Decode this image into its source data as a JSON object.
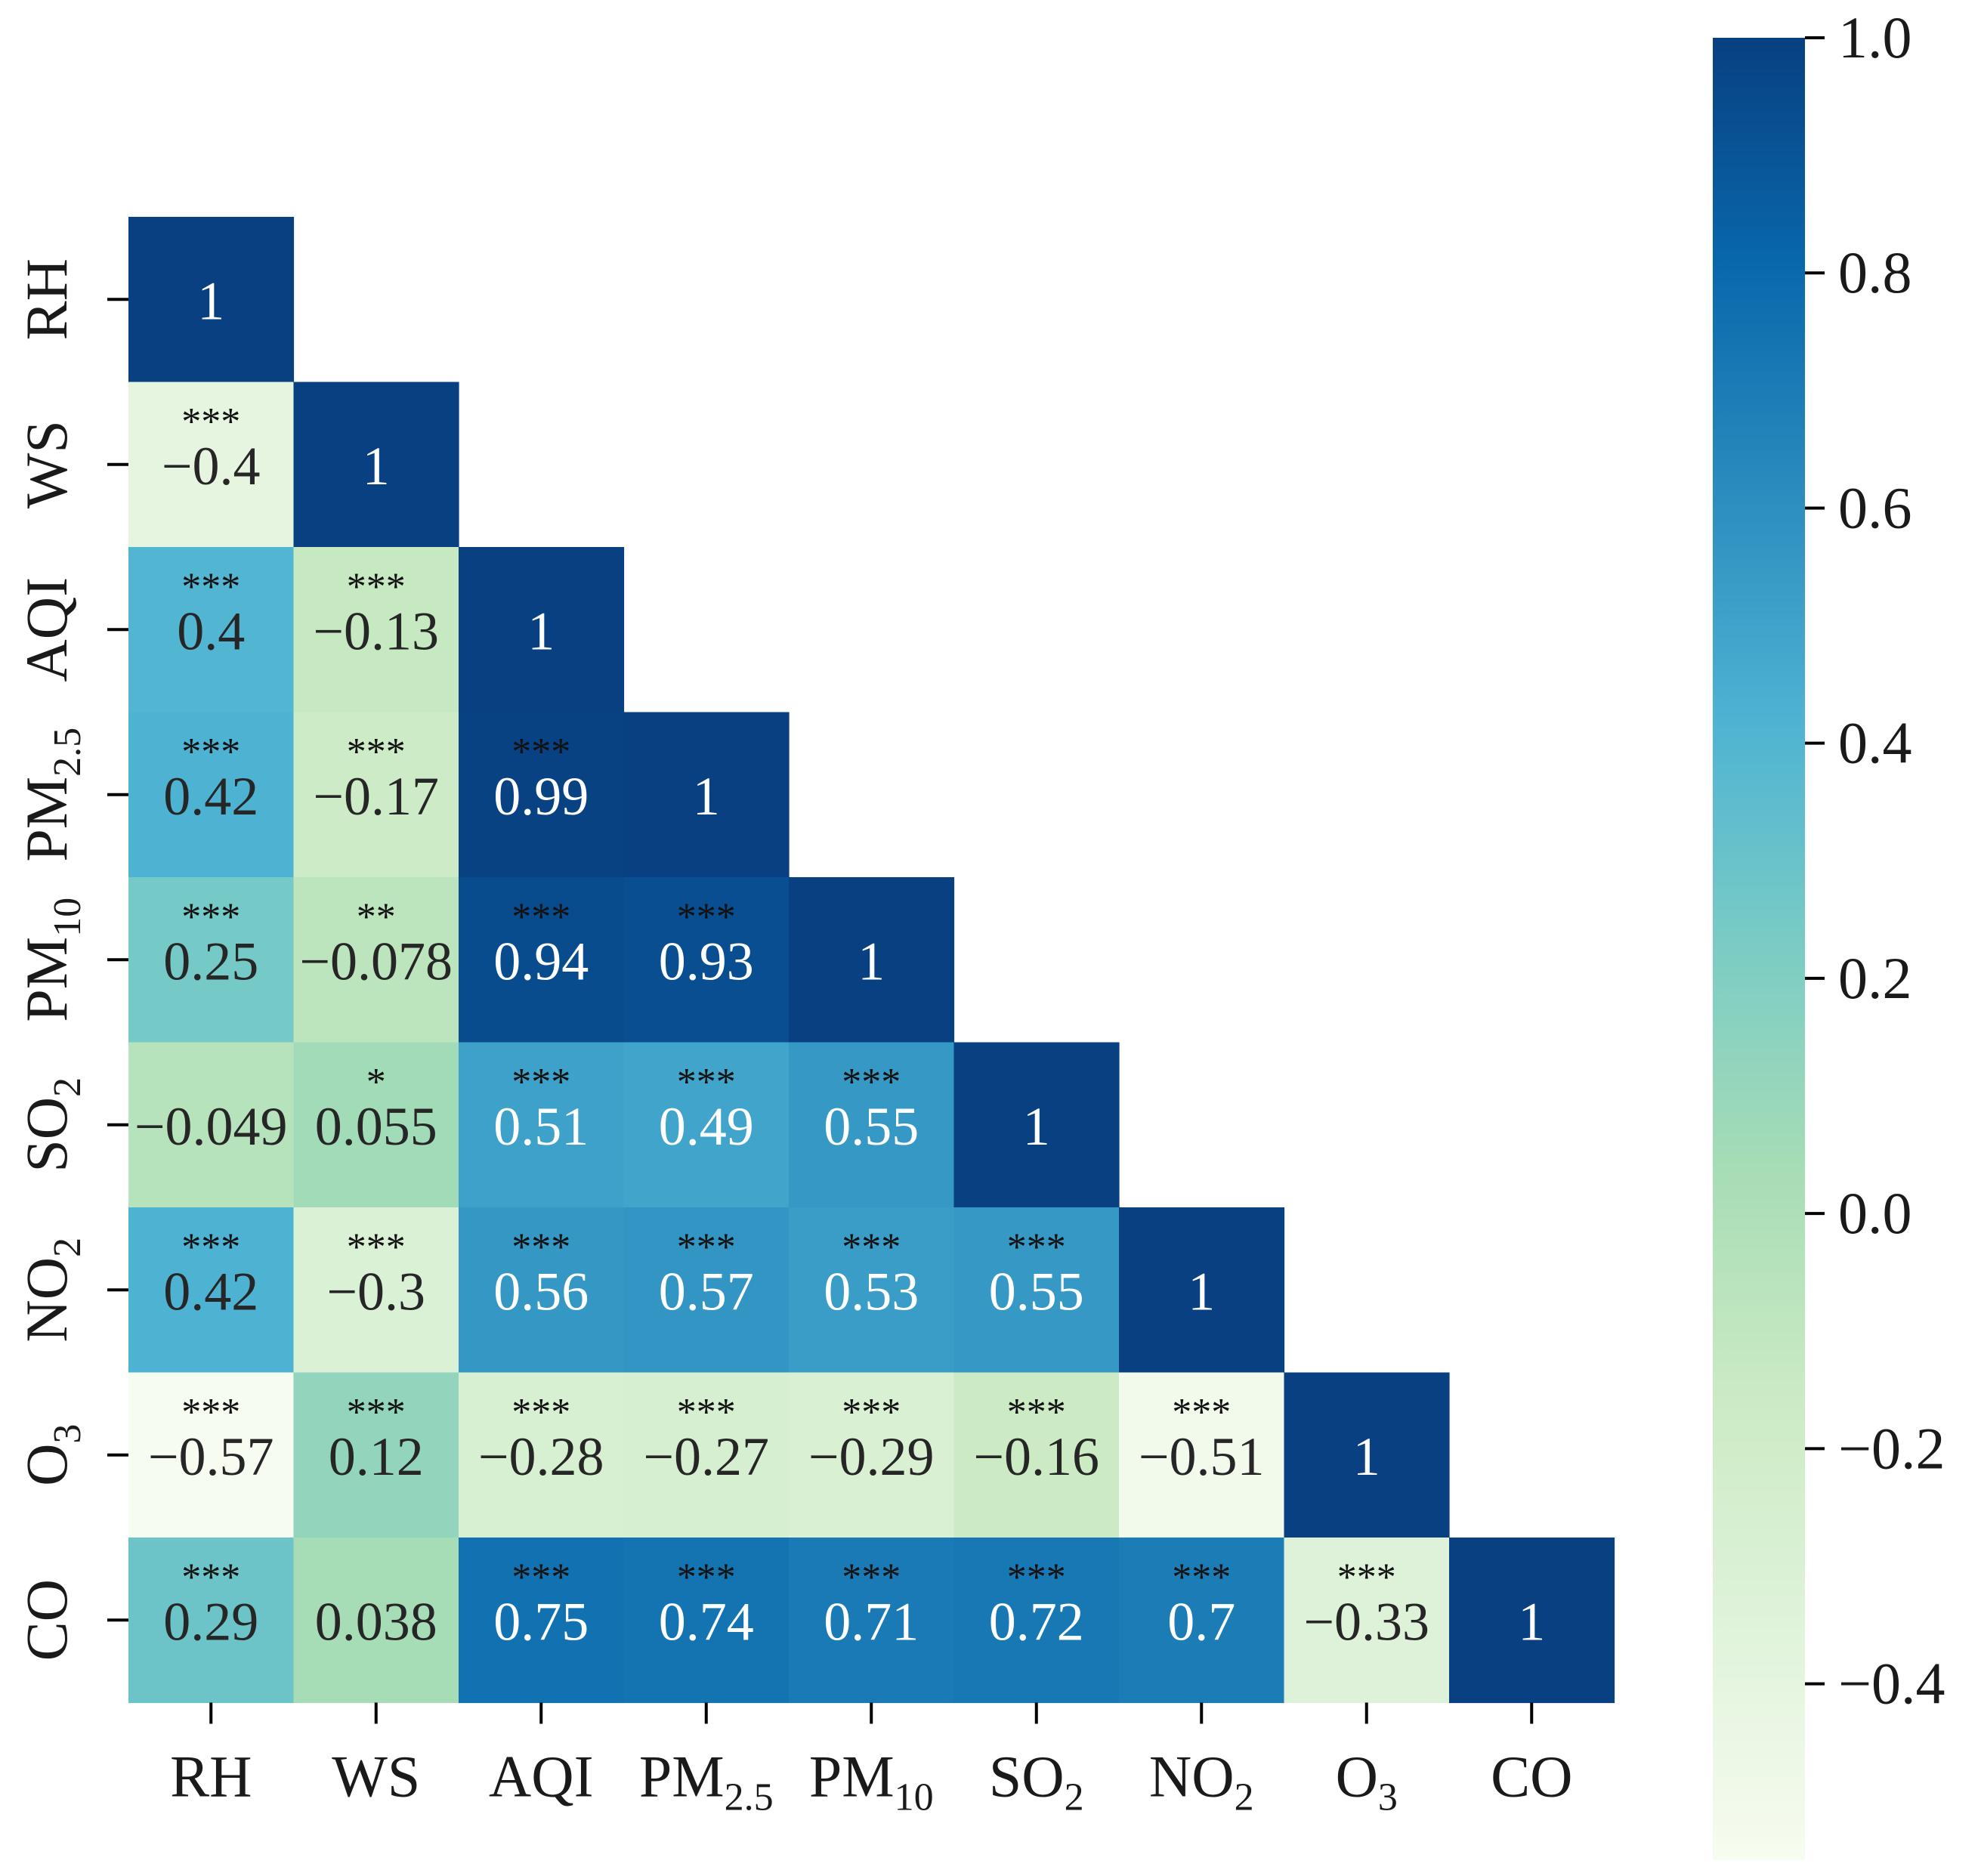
{
  "chart_data": {
    "type": "heatmap",
    "title": "",
    "xlabel": "",
    "ylabel": "",
    "variables": [
      {
        "base": "RH",
        "sub": ""
      },
      {
        "base": "WS",
        "sub": ""
      },
      {
        "base": "AQI",
        "sub": ""
      },
      {
        "base": "PM",
        "sub": "2.5"
      },
      {
        "base": "PM",
        "sub": "10"
      },
      {
        "base": "SO",
        "sub": "2"
      },
      {
        "base": "NO",
        "sub": "2"
      },
      {
        "base": "O",
        "sub": "3"
      },
      {
        "base": "CO",
        "sub": ""
      }
    ],
    "values": [
      [
        1
      ],
      [
        -0.4,
        1
      ],
      [
        0.4,
        -0.13,
        1
      ],
      [
        0.42,
        -0.17,
        0.99,
        1
      ],
      [
        0.25,
        -0.078,
        0.94,
        0.93,
        1
      ],
      [
        -0.049,
        0.055,
        0.51,
        0.49,
        0.55,
        1
      ],
      [
        0.42,
        -0.3,
        0.56,
        0.57,
        0.53,
        0.55,
        1
      ],
      [
        -0.57,
        0.12,
        -0.28,
        -0.27,
        -0.29,
        -0.16,
        -0.51,
        1
      ],
      [
        0.29,
        0.038,
        0.75,
        0.74,
        0.71,
        0.72,
        0.7,
        -0.33,
        1
      ]
    ],
    "labels": [
      [
        "1"
      ],
      [
        "−0.4",
        "1"
      ],
      [
        "0.4",
        "−0.13",
        "1"
      ],
      [
        "0.42",
        "−0.17",
        "0.99",
        "1"
      ],
      [
        "0.25",
        "−0.078",
        "0.94",
        "0.93",
        "1"
      ],
      [
        "−0.049",
        "0.055",
        "0.51",
        "0.49",
        "0.55",
        "1"
      ],
      [
        "0.42",
        "−0.3",
        "0.56",
        "0.57",
        "0.53",
        "0.55",
        "1"
      ],
      [
        "−0.57",
        "0.12",
        "−0.28",
        "−0.27",
        "−0.29",
        "−0.16",
        "−0.51",
        "1"
      ],
      [
        "0.29",
        "0.038",
        "0.75",
        "0.74",
        "0.71",
        "0.72",
        "0.7",
        "−0.33",
        "1"
      ]
    ],
    "significance": [
      [
        ""
      ],
      [
        "***",
        ""
      ],
      [
        "***",
        "***",
        ""
      ],
      [
        "***",
        "***",
        "***",
        ""
      ],
      [
        "***",
        "**",
        "***",
        "***",
        ""
      ],
      [
        "",
        "*",
        "***",
        "***",
        "***",
        ""
      ],
      [
        "***",
        "***",
        "***",
        "***",
        "***",
        "***",
        ""
      ],
      [
        "***",
        "***",
        "***",
        "***",
        "***",
        "***",
        "***",
        ""
      ],
      [
        "***",
        "",
        "***",
        "***",
        "***",
        "***",
        "***",
        "***",
        ""
      ]
    ],
    "colorbar": {
      "vmin": -0.55,
      "vmax": 1.0,
      "ticks": [
        1.0,
        0.8,
        0.6,
        0.4,
        0.2,
        0.0,
        -0.2,
        -0.4
      ],
      "tick_labels": [
        "1.0",
        "0.8",
        "0.6",
        "0.4",
        "0.2",
        "0.0",
        "−0.2",
        "−0.4"
      ],
      "colormap": "GnBu",
      "colormap_stops": [
        "#f7fcf0",
        "#e0f3db",
        "#ccebc5",
        "#a8ddb5",
        "#7bccc4",
        "#4eb3d3",
        "#2b8cbe",
        "#0868ac",
        "#084081"
      ]
    },
    "text_colors": {
      "dark": "#262626",
      "light": "#ffffff"
    }
  }
}
